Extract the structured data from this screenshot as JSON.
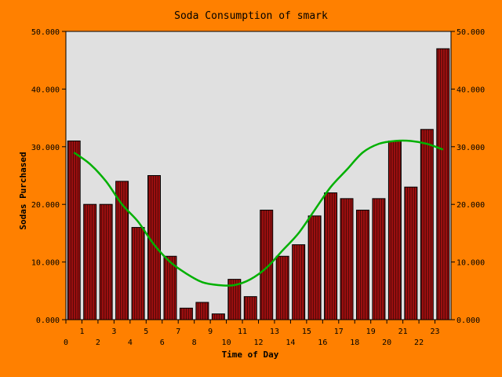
{
  "chart_data": {
    "type": "bar",
    "title": "Soda Consumption of smark",
    "xlabel": "Time of Day",
    "ylabel": "Sodas Purchased",
    "x": [
      0,
      1,
      2,
      3,
      4,
      5,
      6,
      7,
      8,
      9,
      10,
      11,
      12,
      13,
      14,
      15,
      16,
      17,
      18,
      19,
      20,
      21,
      22,
      23
    ],
    "x_tick_labels": [
      "0",
      "1",
      "2",
      "3",
      "4",
      "5",
      "6",
      "7",
      "8",
      "9",
      "10",
      "11",
      "12",
      "13",
      "14",
      "15",
      "16",
      "17",
      "18",
      "19",
      "20",
      "21",
      "22",
      "23"
    ],
    "values": [
      31,
      20,
      20,
      24,
      16,
      25,
      11,
      2,
      3,
      1,
      7,
      4,
      19,
      11,
      13,
      18,
      22,
      21,
      19,
      21,
      31,
      23,
      33,
      47
    ],
    "ylim": [
      0,
      50
    ],
    "y_tick_labels": [
      "0.000",
      "10.000",
      "20.000",
      "30.000",
      "40.000",
      "50.000"
    ],
    "trend_line": {
      "type": "line",
      "x": [
        0,
        1,
        2,
        3,
        4,
        5,
        6,
        7,
        8,
        9,
        10,
        11,
        12,
        13,
        14,
        15,
        16,
        17,
        18,
        19,
        20,
        21,
        22,
        23
      ],
      "values": [
        29,
        27,
        24,
        20,
        17,
        13,
        10,
        8,
        6.5,
        6,
        6,
        7,
        9,
        12,
        15,
        19,
        23,
        26,
        29,
        30.5,
        31,
        31,
        30.5,
        29.5
      ]
    },
    "grid": false,
    "colors": {
      "background": "#ff8000",
      "plot_area": "#e0e0e0",
      "bar_fill": "#9a0f0f",
      "bar_stroke": "#000000",
      "trend_line": "#00b000"
    }
  }
}
